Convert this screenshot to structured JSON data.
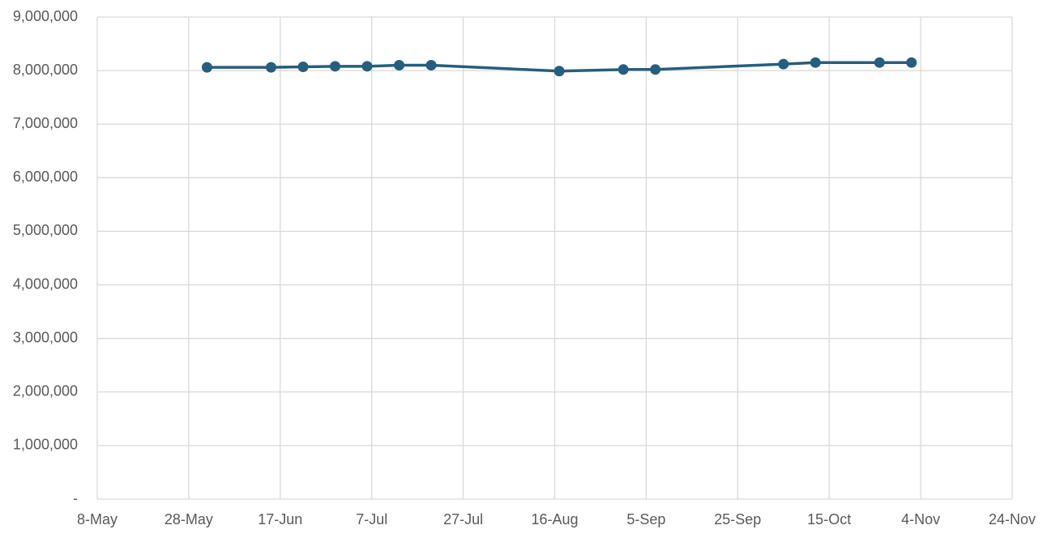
{
  "chart_data": {
    "type": "line",
    "x": [
      "06-01",
      "06-15",
      "06-22",
      "06-29",
      "07-06",
      "07-13",
      "07-20",
      "08-17",
      "08-31",
      "09-07",
      "10-05",
      "10-12",
      "10-26",
      "11-02"
    ],
    "values": [
      8060000,
      8060000,
      8070000,
      8080000,
      8080000,
      8100000,
      8100000,
      7990000,
      8020000,
      8020000,
      8120000,
      8150000,
      8150000,
      8150000
    ],
    "color": "#255e7e",
    "markers": true,
    "xlim": [
      "05-08",
      "11-24"
    ],
    "xticks": [
      {
        "value": "05-08",
        "label": "8-May"
      },
      {
        "value": "05-28",
        "label": "28-May"
      },
      {
        "value": "06-17",
        "label": "17-Jun"
      },
      {
        "value": "07-07",
        "label": "7-Jul"
      },
      {
        "value": "07-27",
        "label": "27-Jul"
      },
      {
        "value": "08-16",
        "label": "16-Aug"
      },
      {
        "value": "09-05",
        "label": "5-Sep"
      },
      {
        "value": "09-25",
        "label": "25-Sep"
      },
      {
        "value": "10-15",
        "label": "15-Oct"
      },
      {
        "value": "11-04",
        "label": "4-Nov"
      },
      {
        "value": "11-24",
        "label": "24-Nov"
      }
    ],
    "ylim": [
      0,
      9000000
    ],
    "yticks": [
      {
        "value": 0,
        "label": "-"
      },
      {
        "value": 1000000,
        "label": "1,000,000"
      },
      {
        "value": 2000000,
        "label": "2,000,000"
      },
      {
        "value": 3000000,
        "label": "3,000,000"
      },
      {
        "value": 4000000,
        "label": "4,000,000"
      },
      {
        "value": 5000000,
        "label": "5,000,000"
      },
      {
        "value": 6000000,
        "label": "6,000,000"
      },
      {
        "value": 7000000,
        "label": "7,000,000"
      },
      {
        "value": 8000000,
        "label": "8,000,000"
      },
      {
        "value": 9000000,
        "label": "9,000,000"
      }
    ],
    "grid": true
  }
}
